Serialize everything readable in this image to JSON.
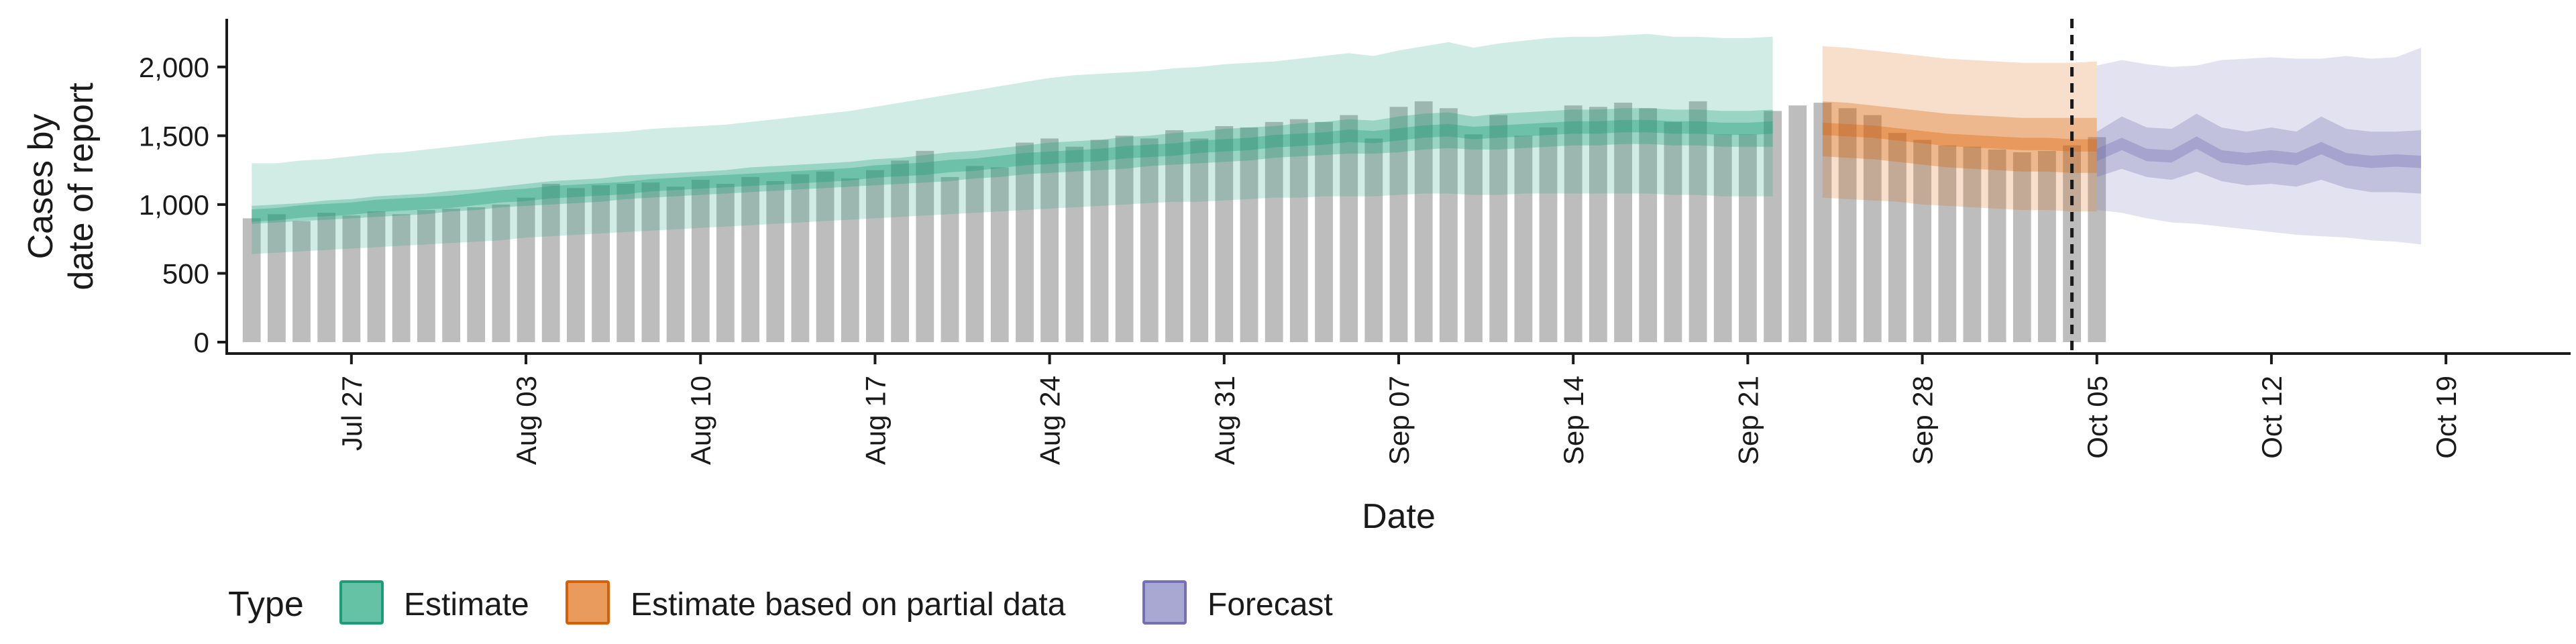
{
  "chart_data": {
    "type": "bar",
    "xlabel": "Date",
    "ylabel_lines": [
      "Cases by",
      "date of report"
    ],
    "ylim": [
      0,
      2350
    ],
    "y_ticks": [
      0,
      500,
      1000,
      1500,
      2000
    ],
    "y_tick_labels": [
      "0",
      "500",
      "1,000",
      "1,500",
      "2,000"
    ],
    "x_range": [
      "2020-07-22",
      "2020-10-24"
    ],
    "x_ticks": [
      "2020-07-27",
      "2020-08-03",
      "2020-08-10",
      "2020-08-17",
      "2020-08-24",
      "2020-08-31",
      "2020-09-07",
      "2020-09-14",
      "2020-09-21",
      "2020-09-28",
      "2020-10-05",
      "2020-10-12",
      "2020-10-19"
    ],
    "x_tick_labels": [
      "Jul 27",
      "Aug 03",
      "Aug 10",
      "Aug 17",
      "Aug 24",
      "Aug 31",
      "Sep 07",
      "Sep 14",
      "Sep 21",
      "Sep 28",
      "Oct 05",
      "Oct 12",
      "Oct 19"
    ],
    "vline_date": "2020-10-04",
    "legend": {
      "title": "Type",
      "position": "bottom",
      "items": [
        {
          "label": "Estimate",
          "fill": "#66c2a5",
          "stroke": "#1b9e77"
        },
        {
          "label": "Estimate based on partial data",
          "fill": "#e89b5c",
          "stroke": "#d95f02"
        },
        {
          "label": "Forecast",
          "fill": "#a9a8d2",
          "stroke": "#7570b3"
        }
      ]
    },
    "colors": {
      "bars": "#bdbdbd",
      "estimate": "#1b9e77",
      "partial": "#d95f02",
      "forecast": "#7570b3"
    },
    "reported_cases": {
      "start_date": "2020-07-23",
      "values": [
        900,
        930,
        880,
        940,
        920,
        950,
        930,
        960,
        970,
        980,
        1000,
        1050,
        1150,
        1120,
        1140,
        1150,
        1160,
        1130,
        1180,
        1150,
        1200,
        1170,
        1220,
        1240,
        1190,
        1250,
        1320,
        1390,
        1200,
        1280,
        1270,
        1450,
        1480,
        1420,
        1470,
        1500,
        1480,
        1540,
        1480,
        1570,
        1560,
        1600,
        1620,
        1600,
        1650,
        1480,
        1710,
        1750,
        1700,
        1510,
        1650,
        1500,
        1560,
        1720,
        1710,
        1740,
        1700,
        1600,
        1750,
        1510,
        1510,
        1680,
        1720,
        1740,
        1700,
        1650,
        1520,
        1470,
        1430,
        1420,
        1400,
        1380,
        1390,
        1430,
        1490
      ]
    },
    "series": [
      {
        "name": "Estimate",
        "start_date": "2020-07-23",
        "median": [
          920,
          930,
          950,
          960,
          970,
          990,
          1000,
          1010,
          1020,
          1040,
          1060,
          1070,
          1090,
          1100,
          1110,
          1120,
          1140,
          1150,
          1160,
          1170,
          1180,
          1190,
          1200,
          1210,
          1220,
          1240,
          1250,
          1260,
          1280,
          1290,
          1310,
          1330,
          1340,
          1350,
          1360,
          1380,
          1390,
          1400,
          1420,
          1430,
          1440,
          1460,
          1470,
          1480,
          1500,
          1490,
          1510,
          1530,
          1540,
          1520,
          1530,
          1540,
          1550,
          1560,
          1560,
          1570,
          1570,
          1560,
          1560,
          1550,
          1550,
          1560
        ],
        "lower_50": [
          860,
          870,
          880,
          890,
          900,
          910,
          920,
          930,
          950,
          960,
          980,
          990,
          1000,
          1010,
          1020,
          1040,
          1050,
          1060,
          1070,
          1080,
          1090,
          1100,
          1110,
          1120,
          1130,
          1140,
          1150,
          1160,
          1170,
          1190,
          1200,
          1220,
          1230,
          1240,
          1250,
          1260,
          1280,
          1290,
          1300,
          1310,
          1320,
          1340,
          1350,
          1360,
          1370,
          1370,
          1380,
          1400,
          1410,
          1400,
          1400,
          1410,
          1420,
          1430,
          1430,
          1440,
          1440,
          1430,
          1430,
          1420,
          1420,
          1420
        ],
        "upper_50": [
          990,
          1000,
          1010,
          1030,
          1040,
          1060,
          1070,
          1080,
          1100,
          1110,
          1130,
          1150,
          1170,
          1180,
          1190,
          1210,
          1220,
          1230,
          1240,
          1250,
          1270,
          1280,
          1290,
          1300,
          1310,
          1330,
          1340,
          1360,
          1380,
          1390,
          1410,
          1430,
          1450,
          1460,
          1470,
          1490,
          1500,
          1520,
          1530,
          1550,
          1560,
          1570,
          1590,
          1600,
          1620,
          1610,
          1640,
          1660,
          1670,
          1640,
          1660,
          1670,
          1680,
          1690,
          1690,
          1700,
          1700,
          1690,
          1690,
          1680,
          1680,
          1690
        ],
        "lower_90": [
          640,
          650,
          660,
          670,
          680,
          690,
          700,
          710,
          720,
          730,
          740,
          760,
          770,
          780,
          790,
          800,
          810,
          820,
          830,
          840,
          850,
          860,
          870,
          880,
          890,
          900,
          910,
          920,
          930,
          940,
          950,
          960,
          970,
          980,
          990,
          1000,
          1010,
          1020,
          1020,
          1030,
          1040,
          1050,
          1050,
          1060,
          1060,
          1060,
          1070,
          1080,
          1080,
          1070,
          1070,
          1080,
          1080,
          1080,
          1080,
          1080,
          1080,
          1070,
          1070,
          1060,
          1060,
          1060
        ],
        "upper_90": [
          1300,
          1300,
          1320,
          1330,
          1350,
          1370,
          1380,
          1400,
          1420,
          1440,
          1460,
          1480,
          1500,
          1510,
          1520,
          1530,
          1550,
          1560,
          1570,
          1580,
          1600,
          1620,
          1640,
          1660,
          1680,
          1710,
          1740,
          1770,
          1800,
          1830,
          1860,
          1890,
          1920,
          1940,
          1950,
          1960,
          1970,
          1990,
          2000,
          2020,
          2030,
          2040,
          2060,
          2080,
          2100,
          2080,
          2120,
          2150,
          2180,
          2140,
          2170,
          2190,
          2210,
          2220,
          2220,
          2230,
          2240,
          2220,
          2220,
          2210,
          2210,
          2220
        ]
      },
      {
        "name": "Estimate based on partial data",
        "start_date": "2020-09-24",
        "median": [
          1550,
          1540,
          1530,
          1510,
          1490,
          1470,
          1460,
          1450,
          1440,
          1440,
          1430,
          1430
        ],
        "lower_50": [
          1350,
          1340,
          1330,
          1310,
          1290,
          1270,
          1260,
          1250,
          1240,
          1240,
          1230,
          1230
        ],
        "upper_50": [
          1750,
          1740,
          1720,
          1700,
          1680,
          1660,
          1650,
          1640,
          1630,
          1630,
          1630,
          1630
        ],
        "lower_90": [
          1050,
          1040,
          1030,
          1020,
          1000,
          990,
          980,
          970,
          960,
          960,
          950,
          950
        ],
        "upper_90": [
          2150,
          2140,
          2120,
          2100,
          2080,
          2060,
          2050,
          2040,
          2030,
          2030,
          2030,
          2040
        ]
      },
      {
        "name": "Forecast",
        "start_date": "2020-10-05",
        "median": [
          1360,
          1440,
          1360,
          1350,
          1450,
          1350,
          1330,
          1350,
          1330,
          1410,
          1330,
          1310,
          1320,
          1310
        ],
        "lower_50": [
          1200,
          1260,
          1200,
          1180,
          1240,
          1170,
          1140,
          1150,
          1130,
          1180,
          1120,
          1090,
          1090,
          1080
        ],
        "upper_50": [
          1530,
          1640,
          1560,
          1550,
          1660,
          1560,
          1530,
          1560,
          1530,
          1640,
          1550,
          1530,
          1530,
          1540
        ],
        "lower_90": [
          960,
          940,
          900,
          870,
          860,
          840,
          820,
          800,
          780,
          770,
          760,
          740,
          730,
          710
        ],
        "upper_90": [
          2010,
          2050,
          2020,
          2000,
          2010,
          2050,
          2060,
          2070,
          2060,
          2060,
          2080,
          2060,
          2070,
          2140
        ]
      }
    ]
  }
}
